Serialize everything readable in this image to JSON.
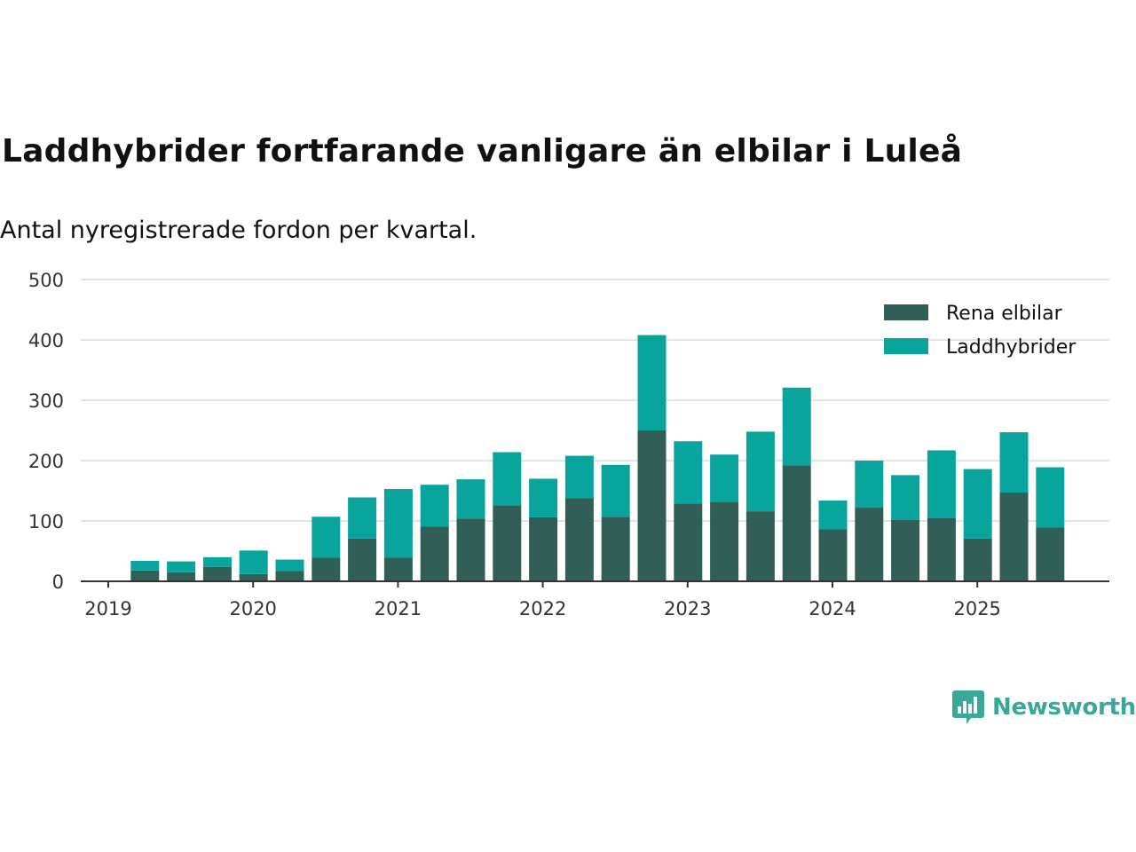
{
  "title": "Laddhybrider fortfarande vanligare än elbilar i Luleå",
  "subtitle": "Antal nyregistrerade fordon per kvartal.",
  "brand": {
    "name": "Newsworthy",
    "icon": "newsworthy-logo-icon",
    "color": "#3aa79a"
  },
  "chart_data": {
    "type": "bar",
    "stacked": true,
    "title": "Laddhybrider fortfarande vanligare än elbilar i Luleå",
    "subtitle": "Antal nyregistrerade fordon per kvartal.",
    "xlabel": "",
    "ylabel": "",
    "ylim": [
      0,
      500
    ],
    "yticks": [
      0,
      100,
      200,
      300,
      400,
      500
    ],
    "grid": true,
    "legend_position": "top-right",
    "x_ticks": [
      "2019",
      "2020",
      "2021",
      "2022",
      "2023",
      "2024",
      "2025"
    ],
    "categories": [
      "2019 Q2",
      "2019 Q3",
      "2019 Q4",
      "2020 Q1",
      "2020 Q2",
      "2020 Q3",
      "2020 Q4",
      "2021 Q1",
      "2021 Q2",
      "2021 Q3",
      "2021 Q4",
      "2022 Q1",
      "2022 Q2",
      "2022 Q3",
      "2022 Q4",
      "2023 Q1",
      "2023 Q2",
      "2023 Q3",
      "2023 Q4",
      "2024 Q1",
      "2024 Q2",
      "2024 Q3",
      "2024 Q4",
      "2025 Q1",
      "2025 Q2",
      "2025 Q3"
    ],
    "series": [
      {
        "name": "Rena elbilar",
        "color": "#315e57",
        "values": [
          18,
          15,
          24,
          12,
          17,
          39,
          71,
          39,
          91,
          104,
          126,
          106,
          138,
          107,
          250,
          129,
          132,
          116,
          192,
          86,
          122,
          102,
          105,
          71,
          147,
          89
        ]
      },
      {
        "name": "Laddhybrider",
        "color": "#09a59c",
        "values": [
          16,
          18,
          16,
          39,
          19,
          68,
          68,
          114,
          69,
          65,
          88,
          64,
          70,
          86,
          158,
          103,
          78,
          132,
          129,
          48,
          78,
          74,
          112,
          115,
          100,
          100
        ]
      }
    ]
  }
}
